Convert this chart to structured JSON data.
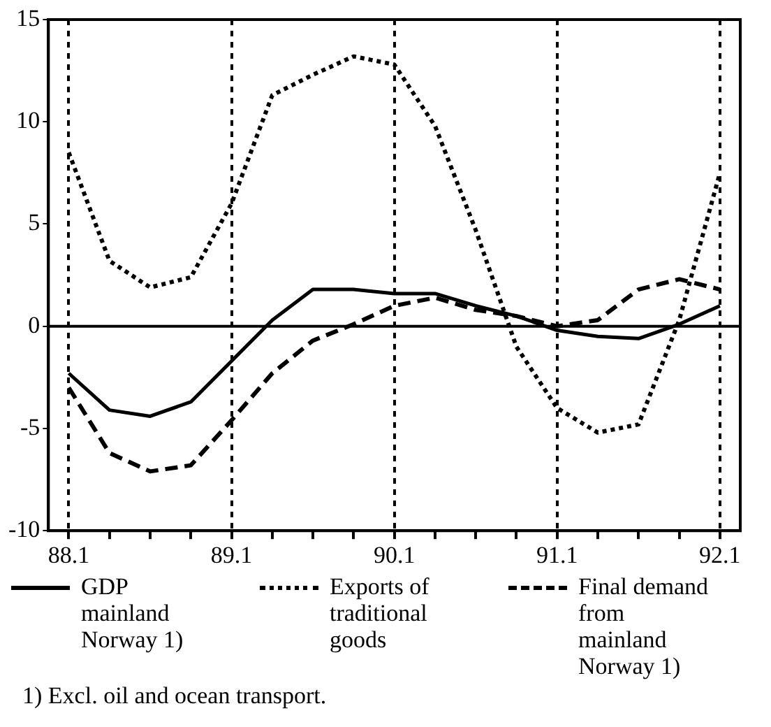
{
  "chart_data": {
    "type": "line",
    "categories": [
      "88.1",
      null,
      null,
      null,
      "89.1",
      null,
      null,
      null,
      "90.1",
      null,
      null,
      null,
      "91.1",
      null,
      null,
      null,
      "92.1"
    ],
    "series": [
      {
        "name": "GDP mainland Norway 1)",
        "color": "#000000",
        "line_style": "solid",
        "values": [
          -2.3,
          -4.1,
          -4.4,
          -3.7,
          -1.7,
          0.3,
          1.8,
          1.8,
          1.6,
          1.6,
          1.0,
          0.5,
          -0.2,
          -0.5,
          -0.6,
          0.1,
          1.0
        ]
      },
      {
        "name": "Exports of traditional goods",
        "color": "#000000",
        "line_style": "dotted",
        "values": [
          8.5,
          3.2,
          1.9,
          2.4,
          6.0,
          11.3,
          12.3,
          13.2,
          12.8,
          9.8,
          4.7,
          -1.0,
          -4.0,
          -5.2,
          -4.8,
          0.3,
          7.5
        ]
      },
      {
        "name": "Final demand from mainland Norway 1)",
        "color": "#000000",
        "line_style": "dashed",
        "values": [
          -3.0,
          -6.2,
          -7.1,
          -6.8,
          -4.6,
          -2.3,
          -0.7,
          0.1,
          1.0,
          1.4,
          0.8,
          0.5,
          0.0,
          0.3,
          1.8,
          2.3,
          1.8
        ]
      }
    ],
    "ylim": [
      -10,
      15
    ],
    "yticks": [
      -10,
      -5,
      0,
      5,
      10,
      15
    ],
    "grid": "x",
    "marker": "none",
    "legend": "bottom",
    "ref_lines": [
      {
        "axis": "y",
        "value": 0,
        "color": "#000000",
        "line_style": "solid"
      }
    ],
    "annotations": [
      "1) Excl. oil and ocean transport."
    ]
  }
}
